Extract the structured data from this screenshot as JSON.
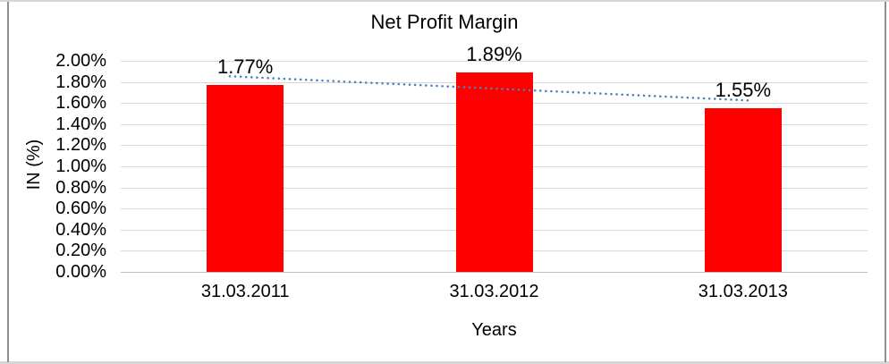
{
  "frame": {
    "border_color": "#8F8F8F",
    "edge_strip_color": "#D6D6D6"
  },
  "chart_data": {
    "type": "bar",
    "title": "Net Profit Margin",
    "xlabel": "Years",
    "ylabel": "IN (%)",
    "categories": [
      "31.03.2011",
      "31.03.2012",
      "31.03.2013"
    ],
    "values": [
      1.77,
      1.89,
      1.55
    ],
    "data_labels": [
      "1.77%",
      "1.89%",
      "1.55%"
    ],
    "ylim": [
      0,
      2.0
    ],
    "ytick_step": 0.2,
    "ytick_labels": [
      "0.00%",
      "0.20%",
      "0.40%",
      "0.60%",
      "0.80%",
      "1.00%",
      "1.20%",
      "1.40%",
      "1.60%",
      "1.80%",
      "2.00%"
    ],
    "grid": true,
    "legend": "none",
    "bar_color": "#FF0000",
    "background_color": "#FFFFFF",
    "trendline": {
      "type": "linear",
      "style": "dotted",
      "color": "#4F81BD",
      "values_at_ends": [
        1.8467,
        1.6267
      ]
    }
  }
}
